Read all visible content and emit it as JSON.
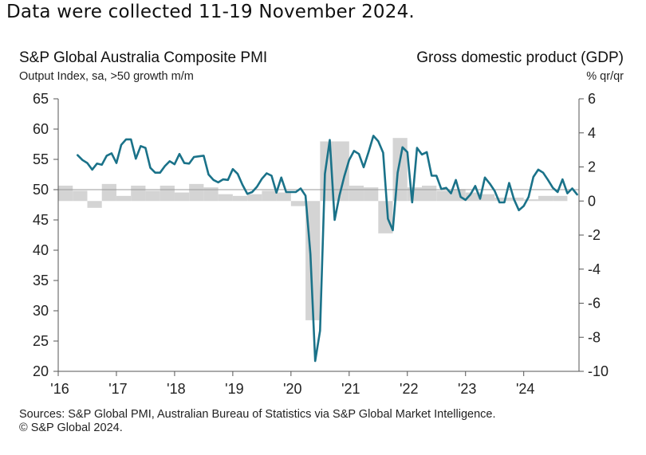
{
  "note": "Data were collected 11-19 November 2024.",
  "footer": {
    "source": "Sources: S&P Global PMI, Australian Bureau of Statistics via S&P Global Market Intelligence.",
    "copyright": "© S&P Global 2024."
  },
  "colors": {
    "pmi_line": "#1a7289",
    "gdp_bar": "#d4d4d4",
    "axis": "#555555",
    "baseline": "#9a9a9a"
  },
  "chart_data": {
    "type": "line",
    "title": "S&P Global Australia Composite PMI",
    "subtitle": "Output Index, sa, >50 growth m/m",
    "right_title": "Gross domestic product (GDP)",
    "right_unit": "% qr/qr",
    "x_tick_labels": [
      "'16",
      "'17",
      "'18",
      "'19",
      "'20",
      "'21",
      "'22",
      "'23",
      "'24"
    ],
    "x_range": [
      2016.0,
      2024.95
    ],
    "y_left": {
      "range": [
        20,
        65
      ],
      "ticks": [
        20,
        25,
        30,
        35,
        40,
        45,
        50,
        55,
        60,
        65
      ]
    },
    "y_right": {
      "range": [
        -10,
        6
      ],
      "ticks": [
        -10,
        -8,
        -6,
        -4,
        -2,
        0,
        2,
        4,
        6
      ]
    },
    "grid": false,
    "series": [
      {
        "name": "S&P Global Australia Composite PMI",
        "axis": "left",
        "style": "line",
        "start": "2016-05",
        "frequency": "monthly",
        "values": [
          55.7,
          54.9,
          54.4,
          53.3,
          54.3,
          54.1,
          55.6,
          56.0,
          54.4,
          57.4,
          58.3,
          58.3,
          55.1,
          57.2,
          56.9,
          53.6,
          52.8,
          52.8,
          53.9,
          54.7,
          54.2,
          55.9,
          54.4,
          54.3,
          55.4,
          55.5,
          55.6,
          52.5,
          51.6,
          51.2,
          51.7,
          51.6,
          53.4,
          52.6,
          50.8,
          49.3,
          49.6,
          50.5,
          51.8,
          52.7,
          52.3,
          49.5,
          52.0,
          49.6,
          49.6,
          49.6,
          50.2,
          49.0,
          39.4,
          21.7,
          26.7,
          52.6,
          58.2,
          45.0,
          49.0,
          52.2,
          54.9,
          56.4,
          55.9,
          53.7,
          56.2,
          58.9,
          58.0,
          56.1,
          45.2,
          43.3,
          52.8,
          57.0,
          56.2,
          47.9,
          56.9,
          55.8,
          56.2,
          52.3,
          52.3,
          50.1,
          50.3,
          49.4,
          51.6,
          48.8,
          48.3,
          49.2,
          50.6,
          48.5,
          52.0,
          51.0,
          49.8,
          47.9,
          47.9,
          51.1,
          48.4,
          46.6,
          47.3,
          48.8,
          52.1,
          53.3,
          52.8,
          51.6,
          50.3,
          49.6,
          51.7,
          49.4,
          50.2,
          49.2
        ]
      },
      {
        "name": "Gross domestic product (GDP)",
        "axis": "right",
        "style": "bar",
        "start": "2016-Q1",
        "frequency": "quarterly",
        "values": [
          0.9,
          0.6,
          -0.4,
          1.0,
          0.3,
          0.9,
          0.6,
          0.9,
          0.5,
          1.0,
          0.8,
          0.4,
          0.3,
          0.4,
          0.6,
          0.5,
          -0.3,
          -7.0,
          3.5,
          3.5,
          0.9,
          0.8,
          -1.9,
          3.7,
          0.8,
          0.9,
          0.6,
          0.7,
          0.5,
          0.4,
          0.2,
          0.2,
          0.1,
          0.3,
          0.3
        ]
      }
    ]
  }
}
